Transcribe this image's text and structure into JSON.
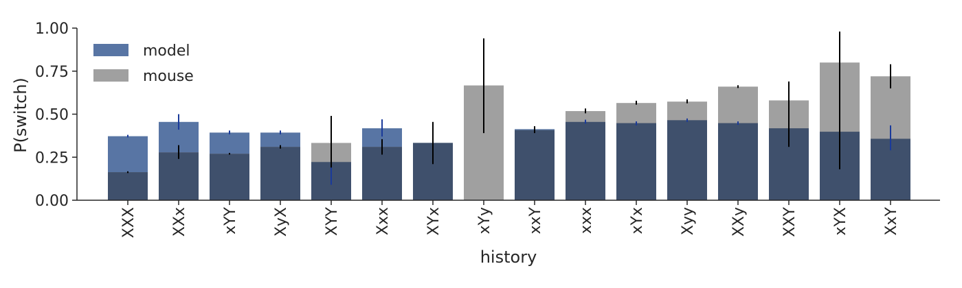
{
  "chart_data": {
    "type": "bar",
    "xlabel": "history",
    "ylabel": "P(switch)",
    "ylim": [
      0,
      1.0
    ],
    "yticks": [
      "0.00",
      "0.25",
      "0.50",
      "0.75",
      "1.00"
    ],
    "grid": false,
    "legend_position": "top-left",
    "categories": [
      "XXX",
      "XXx",
      "xYY",
      "XyX",
      "XYY",
      "Xxx",
      "XYx",
      "xYy",
      "xxY",
      "xxx",
      "xYx",
      "Xyy",
      "XXy",
      "XXY",
      "xYX",
      "XxY"
    ],
    "series": [
      {
        "name": "model",
        "color": "#5875a4",
        "overlap_color": "#3f506c",
        "err_color": "#1a3a9a",
        "values": [
          0.372,
          0.455,
          0.393,
          0.393,
          0.222,
          0.418,
          0.333,
          0.0,
          0.413,
          0.455,
          0.448,
          0.465,
          0.448,
          0.418,
          0.398,
          0.357
        ],
        "err_low": [
          0.365,
          0.41,
          0.383,
          0.383,
          0.09,
          0.37,
          0.333,
          0.0,
          0.403,
          0.445,
          0.435,
          0.455,
          0.438,
          0.315,
          0.19,
          0.29
        ],
        "err_high": [
          0.38,
          0.5,
          0.405,
          0.405,
          0.37,
          0.47,
          0.333,
          0.0,
          0.423,
          0.468,
          0.458,
          0.475,
          0.458,
          0.455,
          0.615,
          0.435
        ]
      },
      {
        "name": "mouse",
        "color": "#a0a0a0",
        "err_color": "#000000",
        "values": [
          0.163,
          0.278,
          0.27,
          0.31,
          0.333,
          0.31,
          0.333,
          0.667,
          0.407,
          0.518,
          0.565,
          0.573,
          0.66,
          0.58,
          0.8,
          0.72
        ],
        "err_low": [
          0.158,
          0.24,
          0.265,
          0.3,
          0.19,
          0.265,
          0.21,
          0.39,
          0.39,
          0.505,
          0.555,
          0.563,
          0.652,
          0.31,
          0.18,
          0.65
        ],
        "err_high": [
          0.168,
          0.32,
          0.275,
          0.32,
          0.49,
          0.355,
          0.455,
          0.94,
          0.43,
          0.533,
          0.578,
          0.586,
          0.668,
          0.69,
          0.98,
          0.79
        ]
      }
    ]
  }
}
